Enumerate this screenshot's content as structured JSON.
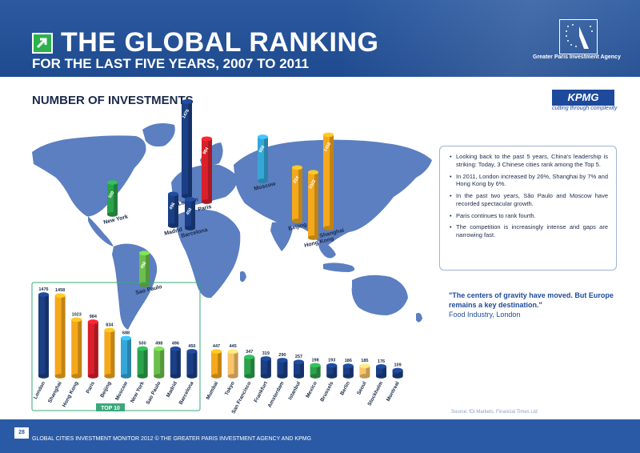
{
  "header": {
    "title": "THE GLOBAL RANKING",
    "subtitle": "FOR THE LAST FIVE YEARS, 2007 TO 2011",
    "agency": "Greater Paris Investment Agency"
  },
  "section_title": "NUMBER OF INVESTMENTS",
  "kpmg": {
    "name": "KPMG",
    "tagline": "cutting through complexity"
  },
  "colors": {
    "header_bg": "#2a5aa6",
    "dark_blue": "#1b3f86",
    "orange": "#f6a81c",
    "red": "#d9202b",
    "light_blue": "#34a7d8",
    "green": "#2ba24c",
    "light_green": "#6cc04a",
    "pale_orange": "#f9c46b",
    "map": "#5b7fc0"
  },
  "chart_data": [
    {
      "type": "bar",
      "subset_label": "TOP 10",
      "categories": [
        "London",
        "Shanghai",
        "Hong Kong",
        "Paris",
        "Beijing",
        "Moscow",
        "New York",
        "Sao Paulo",
        "Madrid",
        "Barcelona",
        "Mumbai",
        "Tokyo",
        "San Francisco",
        "Frankfurt",
        "Amsterdam",
        "Istanbul",
        "Mexico",
        "Brussels",
        "Berlin",
        "Seoul",
        "Stockholm",
        "Montreal"
      ],
      "values": [
        1476,
        1458,
        1023,
        984,
        834,
        688,
        500,
        498,
        496,
        450,
        447,
        445,
        347,
        319,
        290,
        257,
        198,
        193,
        186,
        185,
        176,
        109
      ],
      "color_keys": [
        "dark_blue",
        "orange",
        "orange",
        "red",
        "orange",
        "light_blue",
        "green",
        "light_green",
        "dark_blue",
        "dark_blue",
        "orange",
        "pale_orange",
        "green",
        "dark_blue",
        "dark_blue",
        "dark_blue",
        "green",
        "dark_blue",
        "dark_blue",
        "pale_orange",
        "dark_blue",
        "dark_blue"
      ]
    },
    {
      "type": "bar",
      "cities": [
        {
          "name": "London",
          "value": 1476,
          "color": "dark_blue"
        },
        {
          "name": "Paris",
          "value": 984,
          "color": "red"
        },
        {
          "name": "Madrid",
          "value": 496,
          "color": "dark_blue"
        },
        {
          "name": "Barcelona",
          "value": 450,
          "color": "dark_blue"
        },
        {
          "name": "New York",
          "value": 500,
          "color": "green"
        },
        {
          "name": "Moscow",
          "value": 688,
          "color": "light_blue"
        },
        {
          "name": "Beijing",
          "value": 834,
          "color": "orange"
        },
        {
          "name": "Hong Kong",
          "value": 1023,
          "color": "orange"
        },
        {
          "name": "Shanghai",
          "value": 1458,
          "color": "orange"
        },
        {
          "name": "Sao Paulo",
          "value": 498,
          "color": "light_green"
        }
      ]
    }
  ],
  "insights": [
    "Looking back to the past 5 years, China's leadership is striking: Today, 3 Chinese cities rank among the Top 5.",
    "In 2011, London increased by 26%, Shanghai by 7% and Hong Kong by 6%.",
    "In the past two years, São Paulo and Moscow have recorded spectacular growth.",
    "Paris continues to rank fourth.",
    "The competition is increasingly intense and gaps are narrowing fast."
  ],
  "quote": {
    "text": "\"The centers of gravity have moved. But Europe remains a key destination.\"",
    "source": "Food Industry, London"
  },
  "source_note": "Source: fDi Markets, Financial Times Ltd",
  "footer": {
    "page": "28",
    "text": "GLOBAL CITIES INVESTMENT MONITOR 2012 © THE GREATER PARIS INVESTMENT AGENCY AND KPMG"
  }
}
